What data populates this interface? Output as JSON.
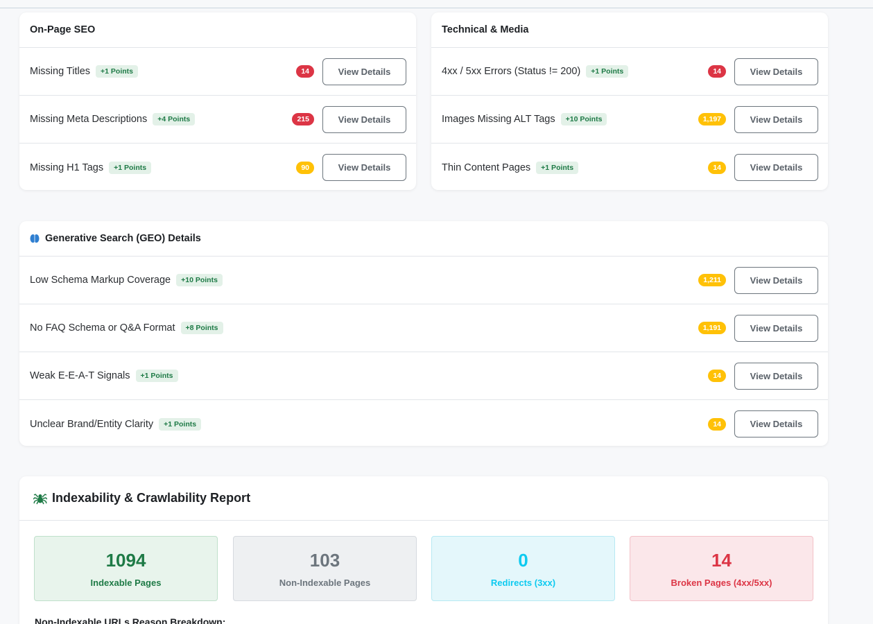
{
  "onpage": {
    "title": "On-Page SEO",
    "rows": [
      {
        "label": "Missing Titles",
        "points": "+1 Points",
        "count": "14",
        "count_color": "red",
        "button": "View Details"
      },
      {
        "label": "Missing Meta Descriptions",
        "points": "+4 Points",
        "count": "215",
        "count_color": "red",
        "button": "View Details"
      },
      {
        "label": "Missing H1 Tags",
        "points": "+1 Points",
        "count": "90",
        "count_color": "yellow",
        "button": "View Details"
      }
    ]
  },
  "technical": {
    "title": "Technical & Media",
    "rows": [
      {
        "label": "4xx / 5xx Errors (Status != 200)",
        "points": "+1 Points",
        "count": "14",
        "count_color": "red",
        "button": "View Details"
      },
      {
        "label": "Images Missing ALT Tags",
        "points": "+10 Points",
        "count": "1,197",
        "count_color": "yellow",
        "button": "View Details"
      },
      {
        "label": "Thin Content Pages",
        "points": "+1 Points",
        "count": "14",
        "count_color": "yellow",
        "button": "View Details"
      }
    ]
  },
  "geo": {
    "title": "Generative Search (GEO) Details",
    "icon": "brain-icon",
    "rows": [
      {
        "label": "Low Schema Markup Coverage",
        "points": "+10 Points",
        "count": "1,211",
        "count_color": "yellow",
        "button": "View Details"
      },
      {
        "label": "No FAQ Schema or Q&A Format",
        "points": "+8 Points",
        "count": "1,191",
        "count_color": "yellow",
        "button": "View Details"
      },
      {
        "label": "Weak E-E-A-T Signals",
        "points": "+1 Points",
        "count": "14",
        "count_color": "yellow",
        "button": "View Details"
      },
      {
        "label": "Unclear Brand/Entity Clarity",
        "points": "+1 Points",
        "count": "14",
        "count_color": "yellow",
        "button": "View Details"
      }
    ]
  },
  "index": {
    "title": "Indexability & Crawlability Report",
    "icon": "spider-icon",
    "stats": [
      {
        "value": "1094",
        "label": "Indexable Pages",
        "color": "green"
      },
      {
        "value": "103",
        "label": "Non-Indexable Pages",
        "color": "gray"
      },
      {
        "value": "0",
        "label": "Redirects (3xx)",
        "color": "cyan"
      },
      {
        "value": "14",
        "label": "Broken Pages (4xx/5xx)",
        "color": "pink"
      }
    ],
    "breakdown_title": "Non-Indexable URLs Reason Breakdown:"
  },
  "colors": {
    "red": "#dc3545",
    "yellow": "#ffc107",
    "green": "#1e7a46",
    "cyan": "#0dcaf0"
  }
}
